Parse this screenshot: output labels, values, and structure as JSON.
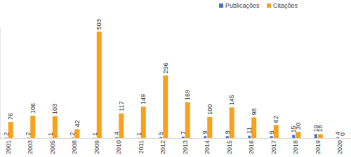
{
  "chart_data": {
    "type": "bar",
    "categories": [
      "2001",
      "2003",
      "2005",
      "2008",
      "2009",
      "2010",
      "2011",
      "2012",
      "2013",
      "2014",
      "2015",
      "2016",
      "2017",
      "2018",
      "2019",
      "2020"
    ],
    "series": [
      {
        "name": "Publicações",
        "color": "#4472c4",
        "values": [
          2,
          2,
          1,
          2,
          1,
          4,
          1,
          5,
          7,
          9,
          9,
          11,
          9,
          15,
          19,
          4
        ]
      },
      {
        "name": "Citações",
        "color": "#f9a11b",
        "values": [
          76,
          106,
          103,
          42,
          503,
          117,
          149,
          296,
          169,
          100,
          145,
          98,
          62,
          30,
          18,
          0
        ]
      }
    ],
    "ylim": [
      0,
      520
    ],
    "data_labels": true,
    "tick_labels": "x",
    "legend": "top-right"
  }
}
